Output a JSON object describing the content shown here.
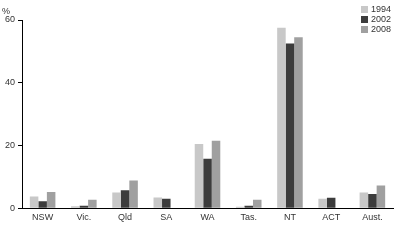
{
  "chart_data": {
    "type": "bar",
    "ylabel": "%",
    "categories": [
      "NSW",
      "Vic.",
      "Qld",
      "SA",
      "WA",
      "Tas.",
      "NT",
      "ACT",
      "Aust."
    ],
    "series": [
      {
        "name": "1994",
        "color": "#c8c8c8",
        "values": [
          3.7,
          0.6,
          5.0,
          3.4,
          20.5,
          0.5,
          57.5,
          3.0,
          5.0
        ]
      },
      {
        "name": "2002",
        "color": "#3c3c3c",
        "values": [
          2.2,
          0.8,
          5.7,
          3.0,
          15.8,
          0.8,
          52.5,
          3.3,
          4.5
        ]
      },
      {
        "name": "2008",
        "color": "#a0a0a0",
        "values": [
          5.2,
          2.7,
          8.8,
          null,
          21.5,
          2.7,
          54.5,
          null,
          7.2
        ]
      }
    ],
    "ylim": [
      0,
      60
    ],
    "yticks": [
      0,
      20,
      40,
      60
    ],
    "grid": true,
    "legend": "upper right"
  }
}
